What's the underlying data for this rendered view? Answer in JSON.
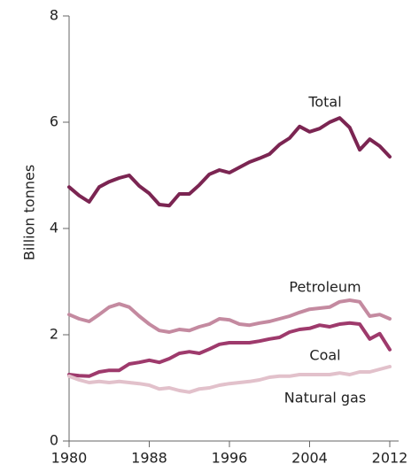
{
  "chart_data": {
    "type": "line",
    "y_label": "Billion tonnes",
    "x": [
      1980,
      1981,
      1982,
      1983,
      1984,
      1985,
      1986,
      1987,
      1988,
      1989,
      1990,
      1991,
      1992,
      1993,
      1994,
      1995,
      1996,
      1997,
      1998,
      1999,
      2000,
      2001,
      2002,
      2003,
      2004,
      2005,
      2006,
      2007,
      2008,
      2009,
      2010,
      2011,
      2012
    ],
    "xlim": [
      1980,
      2012
    ],
    "xticks": [
      1980,
      1988,
      1996,
      2004,
      2012
    ],
    "ylim": [
      0,
      8
    ],
    "yticks": [
      0,
      2,
      4,
      6,
      8
    ],
    "series": [
      {
        "name": "Total",
        "color": "#7b2552",
        "values": [
          4.78,
          4.62,
          4.5,
          4.78,
          4.88,
          4.95,
          5.0,
          4.8,
          4.66,
          4.45,
          4.43,
          4.65,
          4.65,
          4.82,
          5.02,
          5.1,
          5.05,
          5.15,
          5.25,
          5.32,
          5.4,
          5.58,
          5.7,
          5.92,
          5.82,
          5.88,
          6.0,
          6.08,
          5.9,
          5.48,
          5.68,
          5.55,
          5.35
        ]
      },
      {
        "name": "Petroleum",
        "color": "#c48aa0",
        "values": [
          2.38,
          2.3,
          2.25,
          2.38,
          2.52,
          2.58,
          2.52,
          2.35,
          2.2,
          2.08,
          2.05,
          2.1,
          2.08,
          2.15,
          2.2,
          2.3,
          2.28,
          2.2,
          2.18,
          2.22,
          2.25,
          2.3,
          2.35,
          2.42,
          2.48,
          2.5,
          2.52,
          2.62,
          2.65,
          2.62,
          2.35,
          2.38,
          2.3
        ]
      },
      {
        "name": "Coal",
        "color": "#9e3a6c",
        "values": [
          1.25,
          1.23,
          1.22,
          1.3,
          1.33,
          1.33,
          1.45,
          1.48,
          1.52,
          1.48,
          1.55,
          1.65,
          1.68,
          1.65,
          1.73,
          1.82,
          1.85,
          1.85,
          1.85,
          1.88,
          1.92,
          1.95,
          2.05,
          2.1,
          2.12,
          2.18,
          2.15,
          2.2,
          2.22,
          2.2,
          1.92,
          2.02,
          1.72
        ]
      },
      {
        "name": "Natural gas",
        "color": "#e2c1cb",
        "values": [
          1.22,
          1.15,
          1.1,
          1.12,
          1.1,
          1.12,
          1.1,
          1.08,
          1.05,
          0.98,
          1.0,
          0.95,
          0.92,
          0.98,
          1.0,
          1.05,
          1.08,
          1.1,
          1.12,
          1.15,
          1.2,
          1.22,
          1.22,
          1.25,
          1.25,
          1.25,
          1.25,
          1.28,
          1.25,
          1.3,
          1.3,
          1.35,
          1.4
        ]
      }
    ]
  }
}
